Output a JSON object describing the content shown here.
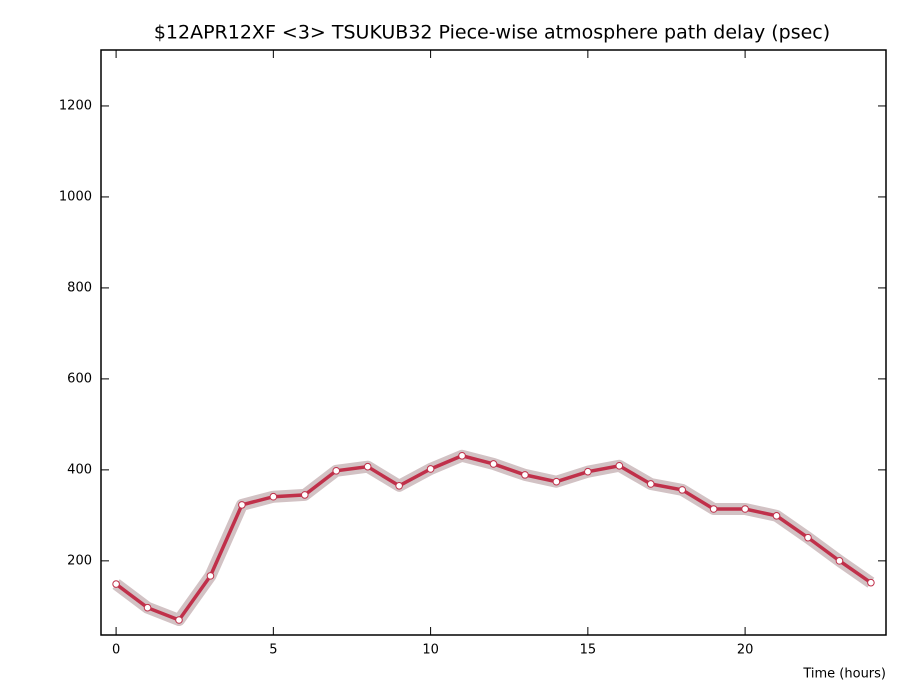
{
  "chart_data": {
    "type": "line",
    "title": "$12APR12XF <3>  TSUKUB32  Piece-wise atmosphere path delay (psec)",
    "x_label": "Time (hours)",
    "x": [
      0,
      1,
      2,
      3,
      4,
      5,
      6,
      7,
      8,
      9,
      10,
      11,
      12,
      13,
      14,
      15,
      16,
      17,
      18,
      19,
      20,
      21,
      22,
      23,
      24
    ],
    "series": [
      {
        "color": "#c0304a",
        "band_color": "#d2c2c4",
        "values": [
          149,
          97,
          70,
          167,
          323,
          341,
          345,
          398,
          407,
          365,
          402,
          431,
          413,
          389,
          374,
          396,
          409,
          369,
          356,
          314,
          314,
          299,
          251,
          200,
          152
        ]
      }
    ],
    "xlim": [
      -0.48,
      24.48
    ],
    "ylim": [
      37,
      1323
    ],
    "xticks": [
      0,
      5,
      10,
      15,
      20
    ],
    "yticks": [
      200,
      400,
      600,
      800,
      1000,
      1200
    ]
  }
}
